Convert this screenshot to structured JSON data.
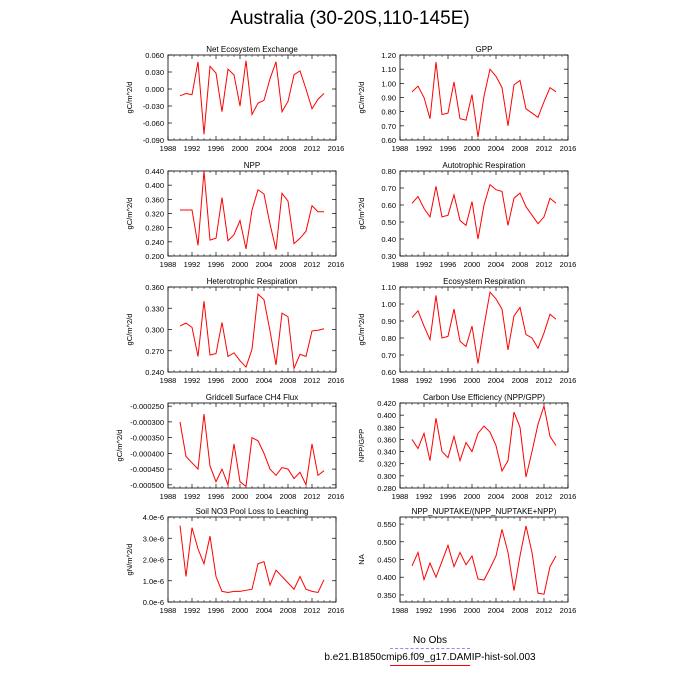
{
  "title": "Australia (30-20S,110-145E)",
  "legend": {
    "entries": [
      {
        "name": "No Obs",
        "color": "#8a8aff",
        "style": "dashed"
      },
      {
        "name": "b.e21.B1850cmip6.f09_g17.DAMIP-hist-sol.003",
        "color": "#ff0000",
        "style": "solid"
      }
    ]
  },
  "chart_data": [
    {
      "type": "line",
      "title": "Net Ecosystem Exchange",
      "ylabel": "gC/m^2/d",
      "xlim": [
        1988,
        2016
      ],
      "ylim": [
        -0.09,
        0.06
      ],
      "xticks": [
        1988,
        1992,
        1996,
        2000,
        2004,
        2008,
        2012,
        2016
      ],
      "xtick_labels": [
        "1988",
        "1992",
        "1996",
        "2000",
        "2004",
        "2008",
        "2012",
        "2016"
      ],
      "yticks": [
        -0.09,
        -0.06,
        -0.03,
        0.0,
        0.03,
        0.06
      ],
      "ytick_labels": [
        "-0.090",
        "-0.060",
        "-0.030",
        "0.000",
        "0.030",
        "0.060"
      ],
      "series": [
        {
          "name": "b.e21.B1850cmip6.f09_g17.DAMIP-hist-sol.003",
          "color": "#ff0000",
          "x": [
            1990,
            1991,
            1992,
            1993,
            1994,
            1995,
            1996,
            1997,
            1998,
            1999,
            2000,
            2001,
            2002,
            2003,
            2004,
            2005,
            2006,
            2007,
            2008,
            2009,
            2010,
            2011,
            2012,
            2013,
            2014
          ],
          "y": [
            -0.012,
            -0.008,
            -0.01,
            0.048,
            -0.08,
            0.04,
            0.028,
            -0.04,
            0.035,
            0.025,
            -0.03,
            0.05,
            -0.045,
            -0.025,
            -0.02,
            0.018,
            0.048,
            -0.04,
            -0.022,
            0.025,
            0.032,
            0.0,
            -0.035,
            -0.018,
            -0.008
          ]
        }
      ]
    },
    {
      "type": "line",
      "title": "GPP",
      "ylabel": "gC/m^2/d",
      "xlim": [
        1988,
        2016
      ],
      "ylim": [
        0.6,
        1.2
      ],
      "xticks": [
        1988,
        1992,
        1996,
        2000,
        2004,
        2008,
        2012,
        2016
      ],
      "xtick_labels": [
        "1988",
        "1992",
        "1996",
        "2000",
        "2004",
        "2008",
        "2012",
        "2016"
      ],
      "yticks": [
        0.6,
        0.7,
        0.8,
        0.9,
        1.0,
        1.1,
        1.2
      ],
      "ytick_labels": [
        "0.60",
        "0.70",
        "0.80",
        "0.90",
        "1.00",
        "1.10",
        "1.20"
      ],
      "series": [
        {
          "name": "b.e21.B1850cmip6.f09_g17.DAMIP-hist-sol.003",
          "color": "#ff0000",
          "x": [
            1990,
            1991,
            1992,
            1993,
            1994,
            1995,
            1996,
            1997,
            1998,
            1999,
            2000,
            2001,
            2002,
            2003,
            2004,
            2005,
            2006,
            2007,
            2008,
            2009,
            2010,
            2011,
            2012,
            2013,
            2014
          ],
          "y": [
            0.94,
            0.98,
            0.9,
            0.75,
            1.15,
            0.78,
            0.79,
            1.01,
            0.75,
            0.74,
            0.92,
            0.62,
            0.91,
            1.1,
            1.05,
            0.97,
            0.7,
            0.99,
            1.02,
            0.82,
            0.79,
            0.76,
            0.87,
            0.97,
            0.94
          ]
        }
      ]
    },
    {
      "type": "line",
      "title": "NPP",
      "ylabel": "gC/m^2/d",
      "xlim": [
        1988,
        2016
      ],
      "ylim": [
        0.2,
        0.44
      ],
      "xticks": [
        1988,
        1992,
        1996,
        2000,
        2004,
        2008,
        2012,
        2016
      ],
      "xtick_labels": [
        "1988",
        "1992",
        "1996",
        "2000",
        "2004",
        "2008",
        "2012",
        "2016"
      ],
      "yticks": [
        0.2,
        0.24,
        0.28,
        0.32,
        0.36,
        0.4,
        0.44
      ],
      "ytick_labels": [
        "0.200",
        "0.240",
        "0.280",
        "0.320",
        "0.360",
        "0.400",
        "0.440"
      ],
      "series": [
        {
          "name": "b.e21.B1850cmip6.f09_g17.DAMIP-hist-sol.003",
          "color": "#ff0000",
          "x": [
            1990,
            1991,
            1992,
            1993,
            1994,
            1995,
            1996,
            1997,
            1998,
            1999,
            2000,
            2001,
            2002,
            2003,
            2004,
            2005,
            2006,
            2007,
            2008,
            2009,
            2010,
            2011,
            2012,
            2013,
            2014
          ],
          "y": [
            0.33,
            0.33,
            0.33,
            0.23,
            0.44,
            0.245,
            0.25,
            0.365,
            0.243,
            0.26,
            0.3,
            0.22,
            0.33,
            0.387,
            0.375,
            0.29,
            0.218,
            0.377,
            0.355,
            0.235,
            0.25,
            0.27,
            0.342,
            0.325,
            0.325
          ]
        }
      ]
    },
    {
      "type": "line",
      "title": "Autotrophic Respiration",
      "ylabel": "gC/m^2/d",
      "xlim": [
        1988,
        2016
      ],
      "ylim": [
        0.3,
        0.8
      ],
      "xticks": [
        1988,
        1992,
        1996,
        2000,
        2004,
        2008,
        2012,
        2016
      ],
      "xtick_labels": [
        "1988",
        "1992",
        "1996",
        "2000",
        "2004",
        "2008",
        "2012",
        "2016"
      ],
      "yticks": [
        0.3,
        0.4,
        0.5,
        0.6,
        0.7,
        0.8
      ],
      "ytick_labels": [
        "0.30",
        "0.40",
        "0.50",
        "0.60",
        "0.70",
        "0.80"
      ],
      "series": [
        {
          "name": "b.e21.B1850cmip6.f09_g17.DAMIP-hist-sol.003",
          "color": "#ff0000",
          "x": [
            1990,
            1991,
            1992,
            1993,
            1994,
            1995,
            1996,
            1997,
            1998,
            1999,
            2000,
            2001,
            2002,
            2003,
            2004,
            2005,
            2006,
            2007,
            2008,
            2009,
            2010,
            2011,
            2012,
            2013,
            2014
          ],
          "y": [
            0.61,
            0.65,
            0.58,
            0.53,
            0.71,
            0.53,
            0.54,
            0.66,
            0.51,
            0.48,
            0.62,
            0.4,
            0.6,
            0.72,
            0.69,
            0.68,
            0.48,
            0.64,
            0.67,
            0.59,
            0.54,
            0.49,
            0.53,
            0.64,
            0.61
          ]
        }
      ]
    },
    {
      "type": "line",
      "title": "Heterotrophic Respiration",
      "ylabel": "gC/m^2/d",
      "xlim": [
        1988,
        2016
      ],
      "ylim": [
        0.24,
        0.36
      ],
      "xticks": [
        1988,
        1992,
        1996,
        2000,
        2004,
        2008,
        2012,
        2016
      ],
      "xtick_labels": [
        "1988",
        "1992",
        "1996",
        "2000",
        "2004",
        "2008",
        "2012",
        "2016"
      ],
      "yticks": [
        0.24,
        0.27,
        0.3,
        0.33,
        0.36
      ],
      "ytick_labels": [
        "0.240",
        "0.270",
        "0.300",
        "0.330",
        "0.360"
      ],
      "series": [
        {
          "name": "b.e21.B1850cmip6.f09_g17.DAMIP-hist-sol.003",
          "color": "#ff0000",
          "x": [
            1990,
            1991,
            1992,
            1993,
            1994,
            1995,
            1996,
            1997,
            1998,
            1999,
            2000,
            2001,
            2002,
            2003,
            2004,
            2005,
            2006,
            2007,
            2008,
            2009,
            2010,
            2011,
            2012,
            2013,
            2014
          ],
          "y": [
            0.305,
            0.309,
            0.303,
            0.262,
            0.34,
            0.264,
            0.266,
            0.31,
            0.262,
            0.267,
            0.256,
            0.247,
            0.272,
            0.35,
            0.342,
            0.298,
            0.25,
            0.323,
            0.318,
            0.245,
            0.265,
            0.262,
            0.298,
            0.299,
            0.301
          ]
        }
      ]
    },
    {
      "type": "line",
      "title": "Ecosystem Respiration",
      "ylabel": "gC/m^2/d",
      "xlim": [
        1988,
        2016
      ],
      "ylim": [
        0.6,
        1.1
      ],
      "xticks": [
        1988,
        1992,
        1996,
        2000,
        2004,
        2008,
        2012,
        2016
      ],
      "xtick_labels": [
        "1988",
        "1992",
        "1996",
        "2000",
        "2004",
        "2008",
        "2012",
        "2016"
      ],
      "yticks": [
        0.6,
        0.7,
        0.8,
        0.9,
        1.0,
        1.1
      ],
      "ytick_labels": [
        "0.60",
        "0.70",
        "0.80",
        "0.90",
        "1.00",
        "1.10"
      ],
      "series": [
        {
          "name": "b.e21.B1850cmip6.f09_g17.DAMIP-hist-sol.003",
          "color": "#ff0000",
          "x": [
            1990,
            1991,
            1992,
            1993,
            1994,
            1995,
            1996,
            1997,
            1998,
            1999,
            2000,
            2001,
            2002,
            2003,
            2004,
            2005,
            2006,
            2007,
            2008,
            2009,
            2010,
            2011,
            2012,
            2013,
            2014
          ],
          "y": [
            0.92,
            0.96,
            0.87,
            0.79,
            1.05,
            0.8,
            0.81,
            0.97,
            0.78,
            0.75,
            0.87,
            0.65,
            0.87,
            1.07,
            1.03,
            0.97,
            0.73,
            0.93,
            0.98,
            0.82,
            0.8,
            0.74,
            0.83,
            0.94,
            0.91
          ]
        }
      ]
    },
    {
      "type": "line",
      "title": "Gridcell Surface CH4 Flux",
      "ylabel": "gC/m^2/d",
      "xlim": [
        1988,
        2016
      ],
      "ylim": [
        -0.00051,
        -0.00024
      ],
      "xticks": [
        1988,
        1992,
        1996,
        2000,
        2004,
        2008,
        2012,
        2016
      ],
      "xtick_labels": [
        "1988",
        "1992",
        "1996",
        "2000",
        "2004",
        "2008",
        "2012",
        "2016"
      ],
      "yticks": [
        -0.0005,
        -0.00045,
        -0.0004,
        -0.00035,
        -0.0003,
        -0.00025
      ],
      "ytick_labels": [
        "-0.000500",
        "-0.000450",
        "-0.000400",
        "-0.000350",
        "-0.000300",
        "-0.000250"
      ],
      "series": [
        {
          "name": "b.e21.B1850cmip6.f09_g17.DAMIP-hist-sol.003",
          "color": "#ff0000",
          "x": [
            1990,
            1991,
            1992,
            1993,
            1994,
            1995,
            1996,
            1997,
            1998,
            1999,
            2000,
            2001,
            2002,
            2003,
            2004,
            2005,
            2006,
            2007,
            2008,
            2009,
            2010,
            2011,
            2012,
            2013,
            2014
          ],
          "y": [
            -0.0003,
            -0.00041,
            -0.00043,
            -0.00045,
            -0.000275,
            -0.00044,
            -0.00049,
            -0.00045,
            -0.0005,
            -0.00037,
            -0.00049,
            -0.000505,
            -0.00035,
            -0.00036,
            -0.0004,
            -0.00045,
            -0.00047,
            -0.000445,
            -0.00045,
            -0.00048,
            -0.00046,
            -0.0005,
            -0.00037,
            -0.00047,
            -0.000455
          ]
        }
      ]
    },
    {
      "type": "line",
      "title": "Carbon Use Efficiency (NPP/GPP)",
      "ylabel": "NPP/GPP",
      "xlim": [
        1988,
        2016
      ],
      "ylim": [
        0.28,
        0.42
      ],
      "xticks": [
        1988,
        1992,
        1996,
        2000,
        2004,
        2008,
        2012,
        2016
      ],
      "xtick_labels": [
        "1988",
        "1992",
        "1996",
        "2000",
        "2004",
        "2008",
        "2012",
        "2016"
      ],
      "yticks": [
        0.28,
        0.3,
        0.32,
        0.34,
        0.36,
        0.38,
        0.4,
        0.42
      ],
      "ytick_labels": [
        "0.280",
        "0.300",
        "0.320",
        "0.340",
        "0.360",
        "0.380",
        "0.400",
        "0.420"
      ],
      "series": [
        {
          "name": "b.e21.B1850cmip6.f09_g17.DAMIP-hist-sol.003",
          "color": "#ff0000",
          "x": [
            1990,
            1991,
            1992,
            1993,
            1994,
            1995,
            1996,
            1997,
            1998,
            1999,
            2000,
            2001,
            2002,
            2003,
            2004,
            2005,
            2006,
            2007,
            2008,
            2009,
            2010,
            2011,
            2012,
            2013,
            2014
          ],
          "y": [
            0.36,
            0.345,
            0.37,
            0.325,
            0.395,
            0.34,
            0.33,
            0.365,
            0.325,
            0.355,
            0.34,
            0.37,
            0.382,
            0.372,
            0.35,
            0.308,
            0.325,
            0.405,
            0.38,
            0.298,
            0.34,
            0.385,
            0.415,
            0.365,
            0.35
          ]
        }
      ]
    },
    {
      "type": "line",
      "title": "Soil NO3 Pool Loss to Leaching",
      "ylabel": "gN/m^2/d",
      "xlim": [
        1988,
        2016
      ],
      "ylim": [
        0.0,
        4e-06
      ],
      "xticks": [
        1988,
        1992,
        1996,
        2000,
        2004,
        2008,
        2012,
        2016
      ],
      "xtick_labels": [
        "1988",
        "1992",
        "1996",
        "2000",
        "2004",
        "2008",
        "2012",
        "2016"
      ],
      "yticks": [
        0.0,
        1e-06,
        2e-06,
        3e-06,
        4e-06
      ],
      "ytick_labels": [
        "0.0e-6",
        "1.0e-6",
        "2.0e-6",
        "3.0e-6",
        "4.0e-6"
      ],
      "series": [
        {
          "name": "b.e21.B1850cmip6.f09_g17.DAMIP-hist-sol.003",
          "color": "#ff0000",
          "x": [
            1990,
            1991,
            1992,
            1993,
            1994,
            1995,
            1996,
            1997,
            1998,
            1999,
            2000,
            2001,
            2002,
            2003,
            2004,
            2005,
            2006,
            2007,
            2008,
            2009,
            2010,
            2011,
            2012,
            2013,
            2014
          ],
          "y": [
            3.6e-06,
            1.2e-06,
            3.5e-06,
            2.5e-06,
            1.8e-06,
            3.1e-06,
            1.2e-06,
            5e-07,
            4.5e-07,
            5e-07,
            5e-07,
            5.5e-07,
            6e-07,
            1.8e-06,
            1.9e-06,
            8e-07,
            1.5e-06,
            1.2e-06,
            9e-07,
            6e-07,
            1.2e-06,
            6e-07,
            5e-07,
            4.5e-07,
            1.05e-06
          ]
        }
      ]
    },
    {
      "type": "line",
      "title": "NPP_NUPTAKE/(NPP_NUPTAKE+NPP)",
      "ylabel": "NA",
      "xlim": [
        1988,
        2016
      ],
      "ylim": [
        0.33,
        0.57
      ],
      "xticks": [
        1988,
        1992,
        1996,
        2000,
        2004,
        2008,
        2012,
        2016
      ],
      "xtick_labels": [
        "1988",
        "1992",
        "1996",
        "2000",
        "2004",
        "2008",
        "2012",
        "2016"
      ],
      "yticks": [
        0.35,
        0.4,
        0.45,
        0.5,
        0.55
      ],
      "ytick_labels": [
        "0.350",
        "0.400",
        "0.450",
        "0.500",
        "0.550"
      ],
      "series": [
        {
          "name": "b.e21.B1850cmip6.f09_g17.DAMIP-hist-sol.003",
          "color": "#ff0000",
          "x": [
            1990,
            1991,
            1992,
            1993,
            1994,
            1995,
            1996,
            1997,
            1998,
            1999,
            2000,
            2001,
            2002,
            2003,
            2004,
            2005,
            2006,
            2007,
            2008,
            2009,
            2010,
            2011,
            2012,
            2013,
            2014
          ],
          "y": [
            0.432,
            0.47,
            0.393,
            0.44,
            0.4,
            0.445,
            0.49,
            0.43,
            0.47,
            0.435,
            0.46,
            0.395,
            0.392,
            0.425,
            0.46,
            0.535,
            0.47,
            0.362,
            0.46,
            0.545,
            0.47,
            0.355,
            0.352,
            0.43,
            0.46
          ]
        }
      ]
    }
  ]
}
